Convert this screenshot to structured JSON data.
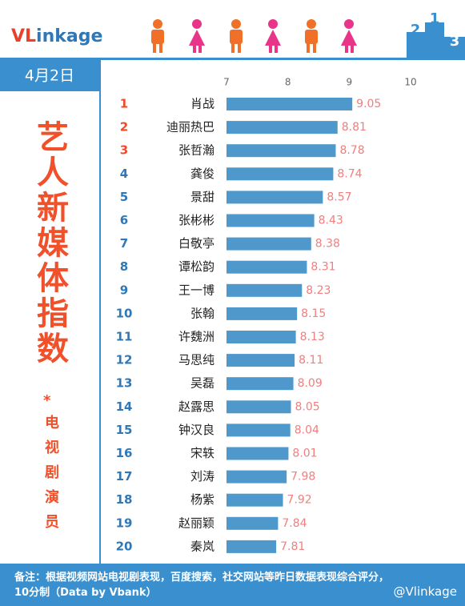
{
  "header": {
    "logo": [
      "VL",
      "inkage"
    ],
    "podium": [
      "2",
      "1",
      "3"
    ],
    "date": "4月2日"
  },
  "side": {
    "title": "艺人新媒体指数",
    "asterisk": "*",
    "subtitle": "电视剧演员"
  },
  "chart_data": {
    "type": "bar",
    "orientation": "horizontal",
    "ranks": [
      "1",
      "2",
      "3",
      "4",
      "5",
      "6",
      "7",
      "8",
      "9",
      "10",
      "11",
      "12",
      "13",
      "14",
      "15",
      "16",
      "17",
      "18",
      "19",
      "20"
    ],
    "categories": [
      "肖战",
      "迪丽热巴",
      "张哲瀚",
      "龚俊",
      "景甜",
      "张彬彬",
      "白敬亭",
      "谭松韵",
      "王一博",
      "张翰",
      "许魏洲",
      "马思纯",
      "吴磊",
      "赵露思",
      "钟汉良",
      "宋轶",
      "刘涛",
      "杨紫",
      "赵丽颖",
      "秦岚"
    ],
    "values": [
      9.05,
      8.81,
      8.78,
      8.74,
      8.57,
      8.43,
      8.38,
      8.31,
      8.23,
      8.15,
      8.13,
      8.11,
      8.09,
      8.05,
      8.04,
      8.01,
      7.98,
      7.92,
      7.84,
      7.81
    ],
    "color": "#4e98cb",
    "label_color": "#f07f7f",
    "top_rank_color": "#ef4a2a",
    "rank_color": "#2f78b8",
    "xlim": [
      7,
      10
    ],
    "xticks": [
      7,
      8,
      9,
      10
    ],
    "grid": false
  },
  "footer": {
    "note": "备注：根据视频网站电视剧表现，百度搜索，社交网站等昨日数据表现综合评分，10分制（Data by Vbank）",
    "handle": "@Vlinkage"
  }
}
